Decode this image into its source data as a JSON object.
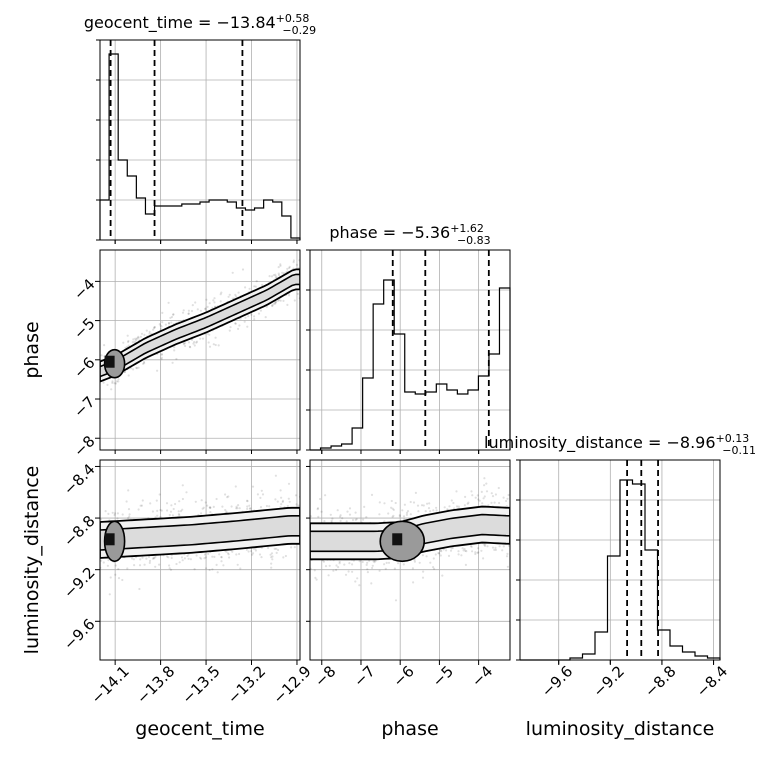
{
  "chart_data": {
    "type": "corner",
    "parameters": [
      {
        "name": "geocent_time",
        "median": "−13.84",
        "plus": "+0.58",
        "minus": "−0.29",
        "quantiles": [
          -14.13,
          -13.84,
          -13.26
        ],
        "range": [
          -14.2,
          -12.88
        ],
        "ticks": [
          -14.1,
          -13.8,
          -13.5,
          -13.2,
          -12.9
        ],
        "tick_labels": [
          "−14.1",
          "−13.8",
          "−13.5",
          "−13.2",
          "−12.9"
        ],
        "hist_counts": [
          0.2,
          0.93,
          0.4,
          0.32,
          0.21,
          0.13,
          0.17,
          0.17,
          0.17,
          0.18,
          0.18,
          0.19,
          0.2,
          0.2,
          0.19,
          0.16,
          0.15,
          0.16,
          0.2,
          0.19,
          0.12,
          0.01
        ]
      },
      {
        "name": "phase",
        "median": "−5.36",
        "plus": "+1.62",
        "minus": "−0.83",
        "quantiles": [
          -6.19,
          -5.36,
          -3.74
        ],
        "range": [
          -8.3,
          -3.2
        ],
        "ticks": [
          -8,
          -7,
          -6,
          -5,
          -4
        ],
        "tick_labels": [
          "−8",
          "−7",
          "−6",
          "−5",
          "−4"
        ],
        "hist_counts": [
          0.0,
          0.01,
          0.02,
          0.03,
          0.11,
          0.36,
          0.73,
          0.85,
          0.58,
          0.29,
          0.28,
          0.29,
          0.33,
          0.3,
          0.28,
          0.3,
          0.37,
          0.48,
          0.81
        ]
      },
      {
        "name": "luminosity_distance",
        "median": "−8.96",
        "plus": "+0.13",
        "minus": "−0.11",
        "quantiles": [
          -9.07,
          -8.96,
          -8.83
        ],
        "range": [
          -9.9,
          -8.35
        ],
        "ticks": [
          -9.6,
          -9.2,
          -8.8,
          -8.4
        ],
        "tick_labels": [
          "−9.6",
          "−9.2",
          "−8.8",
          "−8.4"
        ],
        "hist_counts": [
          0.0,
          0.0,
          0.0,
          0.0,
          0.01,
          0.03,
          0.14,
          0.52,
          0.9,
          0.88,
          0.55,
          0.15,
          0.07,
          0.04,
          0.02,
          0.01
        ]
      }
    ],
    "joint": [
      {
        "x": "geocent_time",
        "y": "phase",
        "ridge": [
          [
            -14.2,
            -6.3
          ],
          [
            -14.1,
            -6.15
          ],
          [
            -13.9,
            -5.7
          ],
          [
            -13.7,
            -5.35
          ],
          [
            -13.5,
            -5.05
          ],
          [
            -13.3,
            -4.7
          ],
          [
            -13.1,
            -4.35
          ],
          [
            -12.92,
            -3.95
          ]
        ],
        "peak": [
          -14.13,
          -6.1
        ]
      },
      {
        "x": "geocent_time",
        "y": "luminosity_distance",
        "ridge": [
          [
            -14.2,
            -8.97
          ],
          [
            -13.9,
            -8.95
          ],
          [
            -13.6,
            -8.93
          ],
          [
            -13.3,
            -8.9
          ],
          [
            -12.95,
            -8.86
          ]
        ],
        "peak": [
          -14.13,
          -8.98
        ]
      },
      {
        "x": "phase",
        "y": "luminosity_distance",
        "ridge": [
          [
            -6.6,
            -8.98
          ],
          [
            -6.0,
            -8.97
          ],
          [
            -5.4,
            -8.92
          ],
          [
            -4.7,
            -8.88
          ],
          [
            -3.9,
            -8.85
          ],
          [
            -3.25,
            -8.86
          ]
        ],
        "peak": [
          -6.05,
          -8.98
        ]
      }
    ]
  }
}
